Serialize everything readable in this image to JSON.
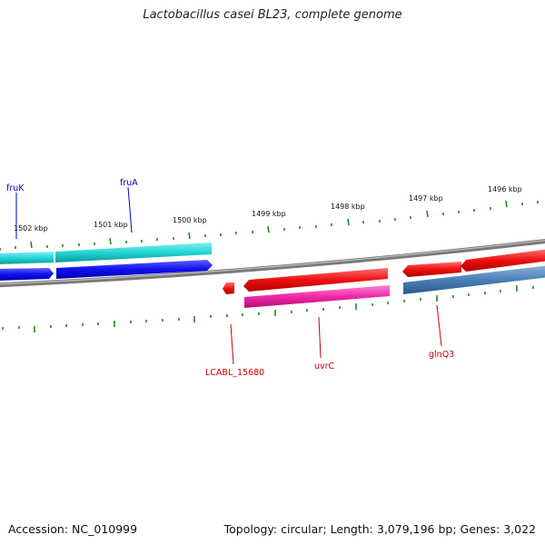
{
  "title": "Lactobacillus casei BL23, complete genome",
  "accession_text": "Accession: NC_010999",
  "summary_text": "Topology: circular; Length: 3,079,196 bp; Genes: 3,022",
  "colors": {
    "backbone": "#8c8c8c",
    "ticks": "#1a8a1a",
    "forward_label": "#0000cc",
    "reverse_label": "#cc0000"
  },
  "kbp_labels": [
    {
      "id": "1502",
      "text": "1502 kbp"
    },
    {
      "id": "1501",
      "text": "1501 kbp"
    },
    {
      "id": "1500",
      "text": "1500 kbp"
    },
    {
      "id": "1499",
      "text": "1499 kbp"
    },
    {
      "id": "1498",
      "text": "1498 kbp"
    },
    {
      "id": "1497",
      "text": "1497 kbp"
    },
    {
      "id": "1496",
      "text": "1496 kbp"
    }
  ],
  "gene_labels": {
    "fruK": "fruK",
    "fruA": "fruA",
    "lcabl": "LCABL_15680",
    "uvrC": "uvrC",
    "glnQ3": "glnQ3"
  }
}
